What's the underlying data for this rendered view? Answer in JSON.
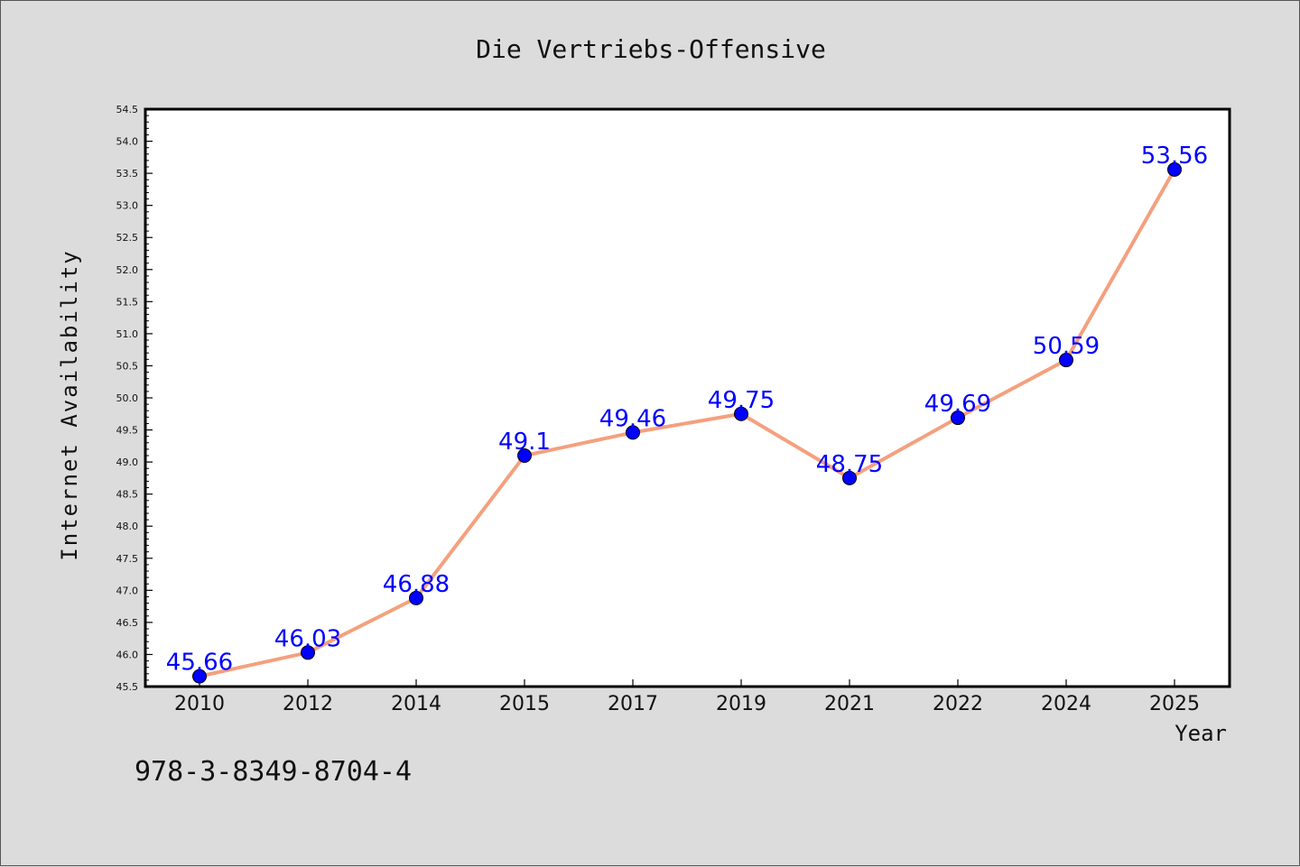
{
  "chart_data": {
    "type": "line",
    "title": "Die Vertriebs-Offensive",
    "xlabel": "Year",
    "ylabel": "Internet Availability",
    "categories": [
      "2010",
      "2012",
      "2014",
      "2015",
      "2017",
      "2019",
      "2021",
      "2022",
      "2024",
      "2025"
    ],
    "series": [
      {
        "values": [
          45.66,
          46.03,
          46.88,
          49.1,
          49.46,
          49.75,
          48.75,
          49.69,
          50.59,
          53.56
        ],
        "labels": [
          "45.66",
          "46.03",
          "46.88",
          "49.1",
          "49.46",
          "49.75",
          "48.75",
          "49.69",
          "50.59",
          "53.56"
        ]
      }
    ],
    "ylim": [
      45.5,
      54.5
    ],
    "yticks": [
      "45.5",
      "46.0",
      "46.5",
      "47.0",
      "47.5",
      "48.0",
      "48.5",
      "49.0",
      "49.5",
      "50.0",
      "50.5",
      "51.0",
      "51.5",
      "52.0",
      "52.5",
      "53.0",
      "53.5",
      "54.0",
      "54.5"
    ],
    "grid": false,
    "legend": "none",
    "colors": {
      "line": "#f4a07e",
      "marker": "#0000ff",
      "data_label": "#0000ff",
      "plot_background": "#ffffff",
      "figure_background": "#dcdcdc"
    }
  },
  "footer_text": "978-3-8349-8704-4"
}
